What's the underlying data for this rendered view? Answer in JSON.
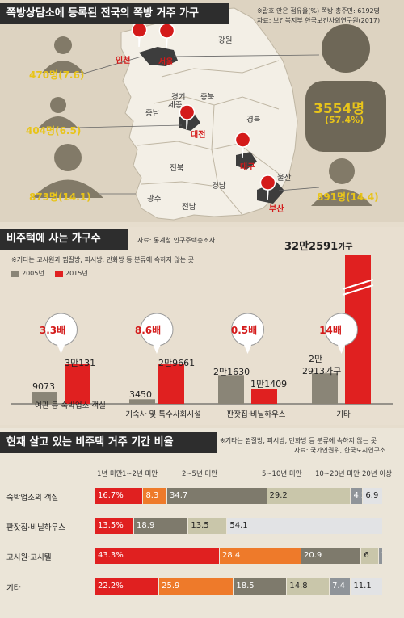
{
  "section1": {
    "title": "쪽방상담소에 등록된 전국의 쪽방 거주 가구",
    "note": "※괄호 안은 점유율(%) 쪽방 총주민: 6192명",
    "source": "자료: 보건복지부 한국보건사회연구원(2017)",
    "regions": [
      "강원",
      "경기",
      "충북",
      "세종",
      "충남",
      "경북",
      "전북",
      "경남",
      "울산",
      "광주",
      "전남"
    ],
    "cities": [
      "인천",
      "서울",
      "대전",
      "대구",
      "부산"
    ],
    "callouts": [
      {
        "value": "470명(7.6)"
      },
      {
        "value": "404명(6.5)"
      },
      {
        "value": "873명(14.1)"
      },
      {
        "value": "891명(14.4)"
      }
    ],
    "big_value": "3554명",
    "big_share": "(57.4%)"
  },
  "section2": {
    "title": "비주택에 사는 가구수",
    "source": "자료: 통계청 인구주택총조사",
    "note": "※기타는 고시원과 찜질방, 피시방, 만화방 등 분류에 속하지 않는 곳",
    "legend": [
      "2005년",
      "2015년"
    ],
    "colors": {
      "y2005": "#8a8577",
      "y2015": "#e02020"
    },
    "top_value_main": "32만2591",
    "top_value_unit": "가구",
    "bars": [
      {
        "category": "여관 등 숙박업소 객실",
        "v2005": 9073,
        "v2015": 30131,
        "l2005": "9073",
        "l2015": "3만131",
        "ratio": "3.3배"
      },
      {
        "category": "기숙사 및 특수사회시설",
        "v2005": 3450,
        "v2015": 29661,
        "l2005": "3450",
        "l2015": "2만9661",
        "ratio": "8.6배"
      },
      {
        "category": "판잣집·비닐하우스",
        "v2005": 21630,
        "v2015": 11409,
        "l2005": "2만1630",
        "l2015": "1만1409",
        "ratio": "0.5배"
      },
      {
        "category": "기타",
        "v2005": 22913,
        "v2015": 322591,
        "l2005_1": "2만",
        "l2005_2": "2913가구",
        "ratio": "14배"
      }
    ]
  },
  "section3": {
    "title": "현재 살고 있는 비주택 거주 기간 비율",
    "note": "※기타는 찜질방, 피시방, 만화방 등 분류에 속하지 않는 곳",
    "source": "자료: 국가인권위, 한국도시연구소",
    "period_labels": [
      "1년 미만",
      "1~2년 미만",
      "2~5년 미만",
      "5~10년 미만",
      "10~20년 미만",
      "20년 이상"
    ]
  },
  "chart_data": [
    {
      "type": "bar",
      "title": "비주택에 사는 가구수",
      "categories": [
        "여관 등 숙박업소 객실",
        "기숙사 및 특수사회시설",
        "판잣집·비닐하우스",
        "기타"
      ],
      "series": [
        {
          "name": "2005년",
          "values": [
            9073,
            3450,
            21630,
            22913
          ]
        },
        {
          "name": "2015년",
          "values": [
            30131,
            29661,
            11409,
            322591
          ]
        }
      ],
      "annotations": [
        "3.3배",
        "8.6배",
        "0.5배",
        "14배"
      ]
    },
    {
      "type": "bar",
      "stacked": true,
      "orientation": "horizontal",
      "title": "현재 살고 있는 비주택 거주 기간 비율",
      "categories": [
        "숙박업소의 객실",
        "판잣집·비닐하우스",
        "고시원·고시텔",
        "기타"
      ],
      "series": [
        {
          "name": "1년 미만",
          "color": "#e02020",
          "values": [
            16.7,
            13.5,
            43.3,
            22.2
          ],
          "labels": [
            "16.7%",
            "13.5%",
            "43.3%",
            "22.2%"
          ]
        },
        {
          "name": "1~2년 미만",
          "color": "#ee7a2a",
          "values": [
            8.3,
            0,
            28.4,
            25.9
          ],
          "labels": [
            "8.3",
            "",
            "28.4",
            "25.9"
          ]
        },
        {
          "name": "2~5년 미만",
          "color": "#7e7a6c",
          "values": [
            34.7,
            18.9,
            20.9,
            18.5
          ],
          "labels": [
            "34.7",
            "18.9",
            "20.9",
            "18.5"
          ]
        },
        {
          "name": "5~10년 미만",
          "color": "#c9c6aa",
          "values": [
            29.2,
            13.5,
            6,
            14.8
          ],
          "labels": [
            "29.2",
            "13.5",
            "6",
            "14.8"
          ]
        },
        {
          "name": "10~20년 미만",
          "color": "#8f9499",
          "values": [
            4.2,
            0,
            1.5,
            7.4
          ],
          "labels": [
            "4.2",
            "",
            "1.5",
            "7.4"
          ]
        },
        {
          "name": "20년 이상",
          "color": "#e2e3e5",
          "values": [
            6.9,
            54.1,
            0,
            11.1
          ],
          "labels": [
            "6.9",
            "54.1",
            "",
            "11.1"
          ]
        }
      ]
    }
  ]
}
